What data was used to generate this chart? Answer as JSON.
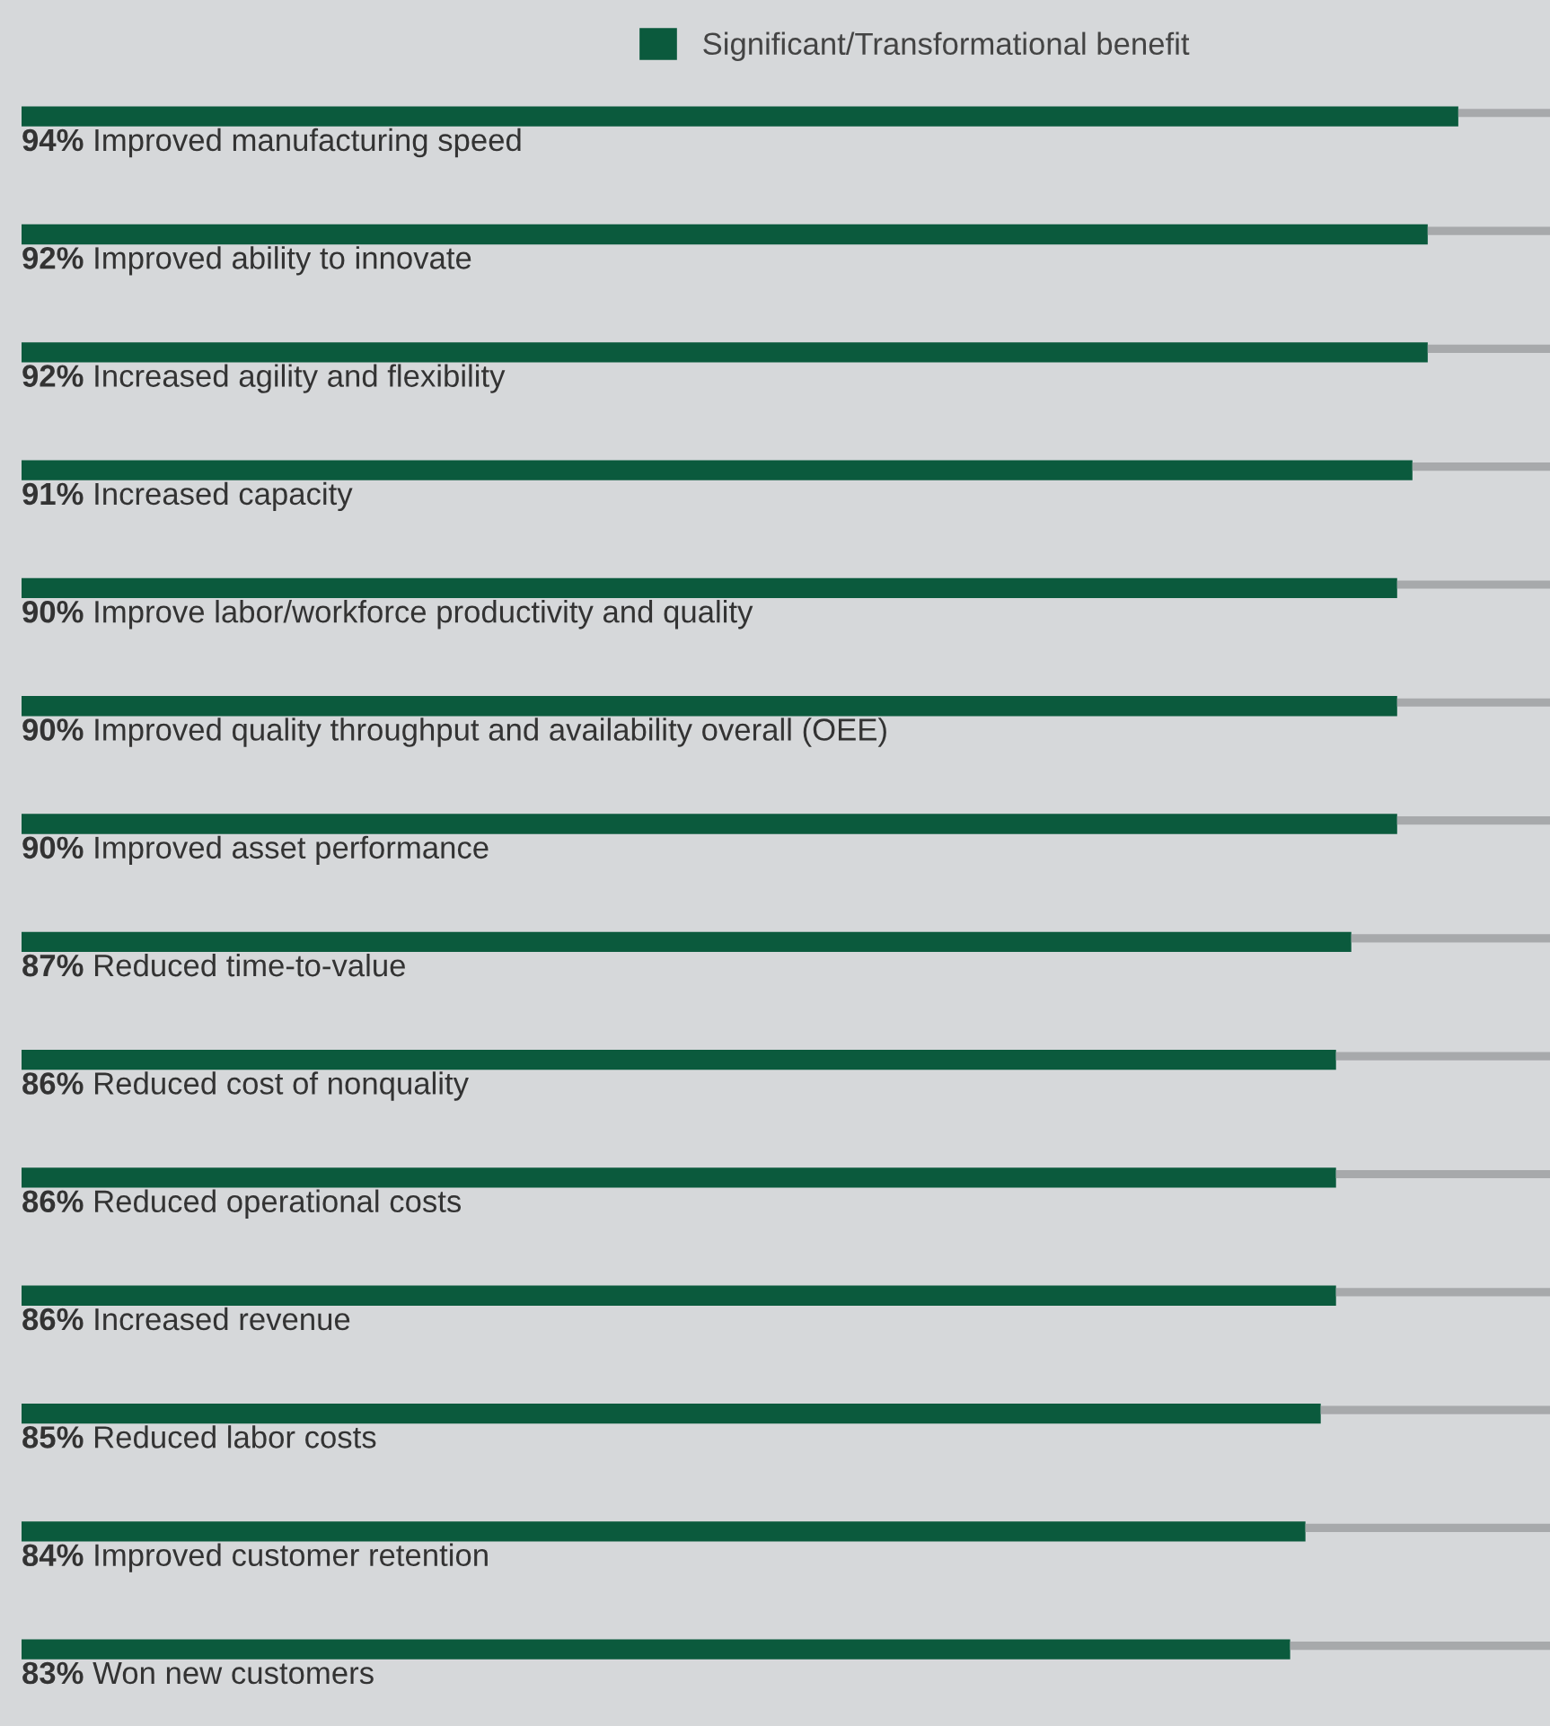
{
  "chart_data": {
    "type": "bar",
    "orientation": "horizontal",
    "stacked": true,
    "categories": [
      "Improved manufacturing speed",
      "Improved ability to innovate",
      "Increased agility and flexibility",
      "Increased capacity",
      "Improve labor/workforce productivity and quality",
      "Improved quality throughput and availability overall (OEE)",
      "Improved asset performance",
      "Reduced time-to-value",
      "Reduced cost of nonquality",
      "Reduced operational costs",
      "Increased revenue",
      "Reduced labor costs",
      "Improved customer retention",
      "Won new customers"
    ],
    "series": [
      {
        "name": "Significant/Transformational benefit",
        "color": "#0b5a3d",
        "values": [
          94,
          92,
          92,
          91,
          90,
          90,
          90,
          87,
          86,
          86,
          86,
          85,
          84,
          83
        ],
        "value_labels": [
          "94%",
          "92%",
          "92%",
          "91%",
          "90%",
          "90%",
          "90%",
          "87%",
          "86%",
          "86%",
          "86%",
          "85%",
          "84%",
          "83%"
        ]
      },
      {
        "color": "#a7a9ab",
        "values": [
          6,
          8,
          8,
          9,
          10,
          10,
          10,
          13,
          14,
          14,
          14,
          15,
          16,
          17
        ]
      }
    ],
    "xlim": [
      0,
      100
    ],
    "tick_labels": false,
    "grid": false,
    "legend": "top"
  }
}
